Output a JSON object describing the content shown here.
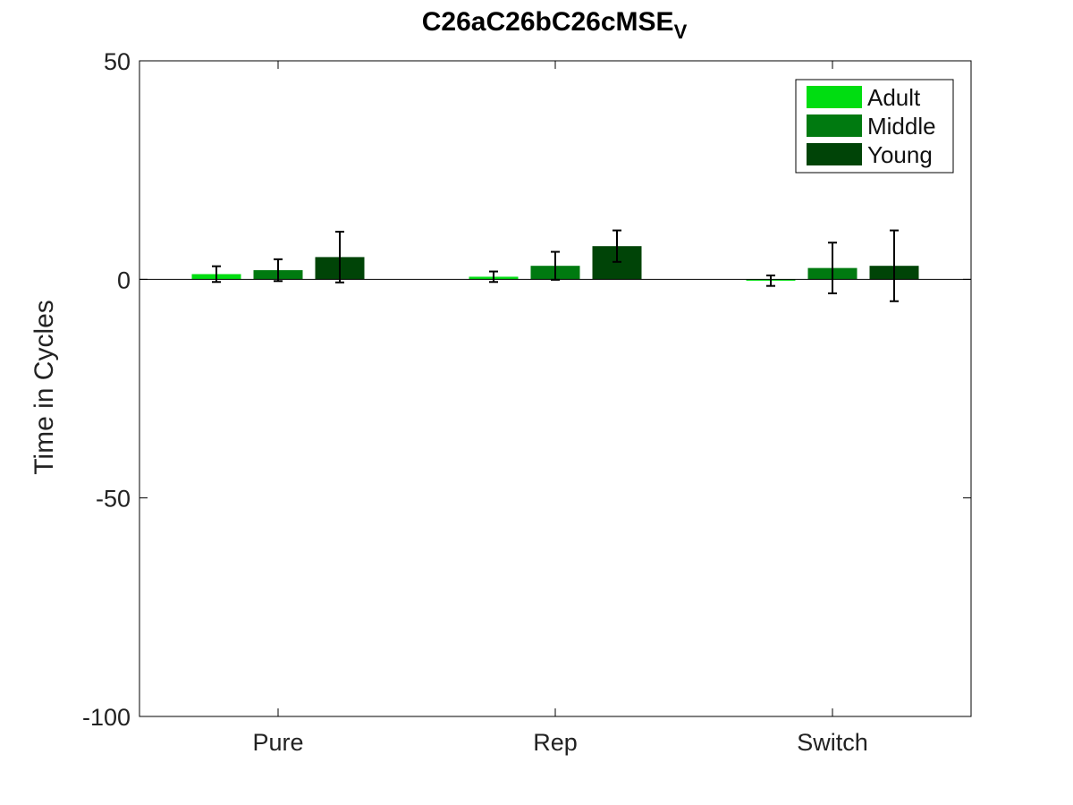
{
  "chart_data": {
    "type": "bar",
    "title": "C26aC26bC26cMSE",
    "title_subscript": "V",
    "xlabel": "",
    "ylabel": "Time in Cycles",
    "categories": [
      "Pure",
      "Rep",
      "Switch"
    ],
    "ylim": [
      -100,
      50
    ],
    "yticks": [
      50,
      0,
      -50,
      -100
    ],
    "grid": false,
    "legend_position": "top-right",
    "series": [
      {
        "name": "Adult",
        "color": "#00dd11",
        "values": [
          1.2,
          0.6,
          -0.3
        ],
        "errors": [
          1.8,
          1.2,
          1.2
        ]
      },
      {
        "name": "Middle",
        "color": "#007a10",
        "values": [
          2.1,
          3.1,
          2.6
        ],
        "errors": [
          2.5,
          3.2,
          5.8
        ]
      },
      {
        "name": "Young",
        "color": "#004407",
        "values": [
          5.1,
          7.6,
          3.1
        ],
        "errors": [
          5.8,
          3.6,
          8.1
        ]
      }
    ]
  }
}
